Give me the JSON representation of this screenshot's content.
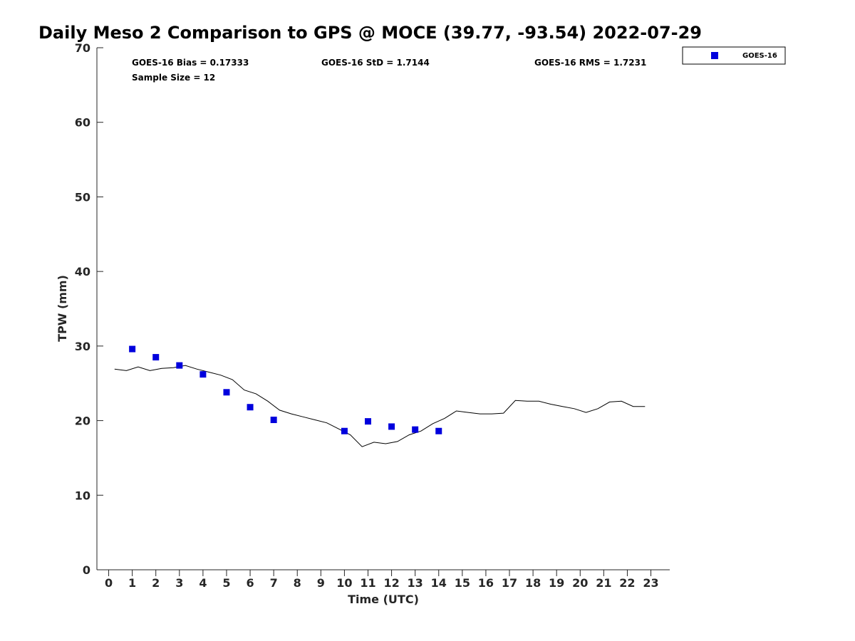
{
  "chart_data": {
    "type": "scatter",
    "title": "Daily Meso 2 Comparison to GPS @ MOCE (39.77, -93.54) 2022-07-29",
    "xlabel": "Time (UTC)",
    "ylabel": "TPW (mm)",
    "xlim": [
      -0.5,
      23.8
    ],
    "ylim": [
      0,
      70
    ],
    "x_ticks": [
      "0",
      "1",
      "2",
      "3",
      "4",
      "5",
      "6",
      "7",
      "8",
      "9",
      "10",
      "11",
      "12",
      "13",
      "14",
      "15",
      "16",
      "17",
      "18",
      "19",
      "20",
      "21",
      "22",
      "23"
    ],
    "y_ticks": [
      "0",
      "10",
      "20",
      "30",
      "40",
      "50",
      "60",
      "70"
    ],
    "grid": false,
    "legend_position": "outside-top-right",
    "stats": {
      "bias": "GOES-16 Bias = 0.17333",
      "std": "GOES-16 StD = 1.7144",
      "rms": "GOES-16 RMS = 1.7231",
      "sample": "Sample Size = 12"
    },
    "series": [
      {
        "name": "GOES-16",
        "kind": "scatter",
        "marker": "square",
        "color": "#0000dd",
        "x": [
          1,
          2,
          3,
          4,
          5,
          6,
          7,
          10,
          11,
          12,
          13,
          14
        ],
        "y": [
          29.6,
          28.5,
          27.4,
          26.2,
          23.8,
          21.8,
          20.1,
          18.6,
          19.9,
          19.2,
          18.8,
          18.6
        ]
      },
      {
        "kind": "line",
        "color": "#000000",
        "x": [
          0.25,
          0.75,
          1.25,
          1.75,
          2.25,
          2.75,
          3.25,
          3.75,
          4.25,
          4.75,
          5.25,
          5.75,
          6.25,
          6.75,
          7.25,
          7.75,
          8.25,
          8.75,
          9.25,
          9.75,
          10.25,
          10.75,
          11.25,
          11.75,
          12.25,
          12.75,
          13.25,
          13.75,
          14.25,
          14.75,
          15.25,
          15.75,
          16.25,
          16.75,
          17.25,
          17.75,
          18.25,
          18.75,
          19.25,
          19.75,
          20.25,
          20.75,
          21.25,
          21.75,
          22.25,
          22.75
        ],
        "y": [
          26.9,
          26.7,
          27.2,
          26.7,
          27.0,
          27.1,
          27.4,
          26.9,
          26.5,
          26.1,
          25.5,
          24.1,
          23.6,
          22.6,
          21.4,
          20.9,
          20.5,
          20.1,
          19.7,
          18.9,
          18.1,
          16.5,
          17.1,
          16.9,
          17.2,
          18.1,
          18.6,
          19.6,
          20.3,
          21.3,
          21.1,
          20.9,
          20.9,
          21.0,
          22.7,
          22.6,
          22.6,
          22.2,
          21.9,
          21.6,
          21.1,
          21.6,
          22.5,
          22.6,
          21.9,
          21.9
        ]
      }
    ]
  }
}
